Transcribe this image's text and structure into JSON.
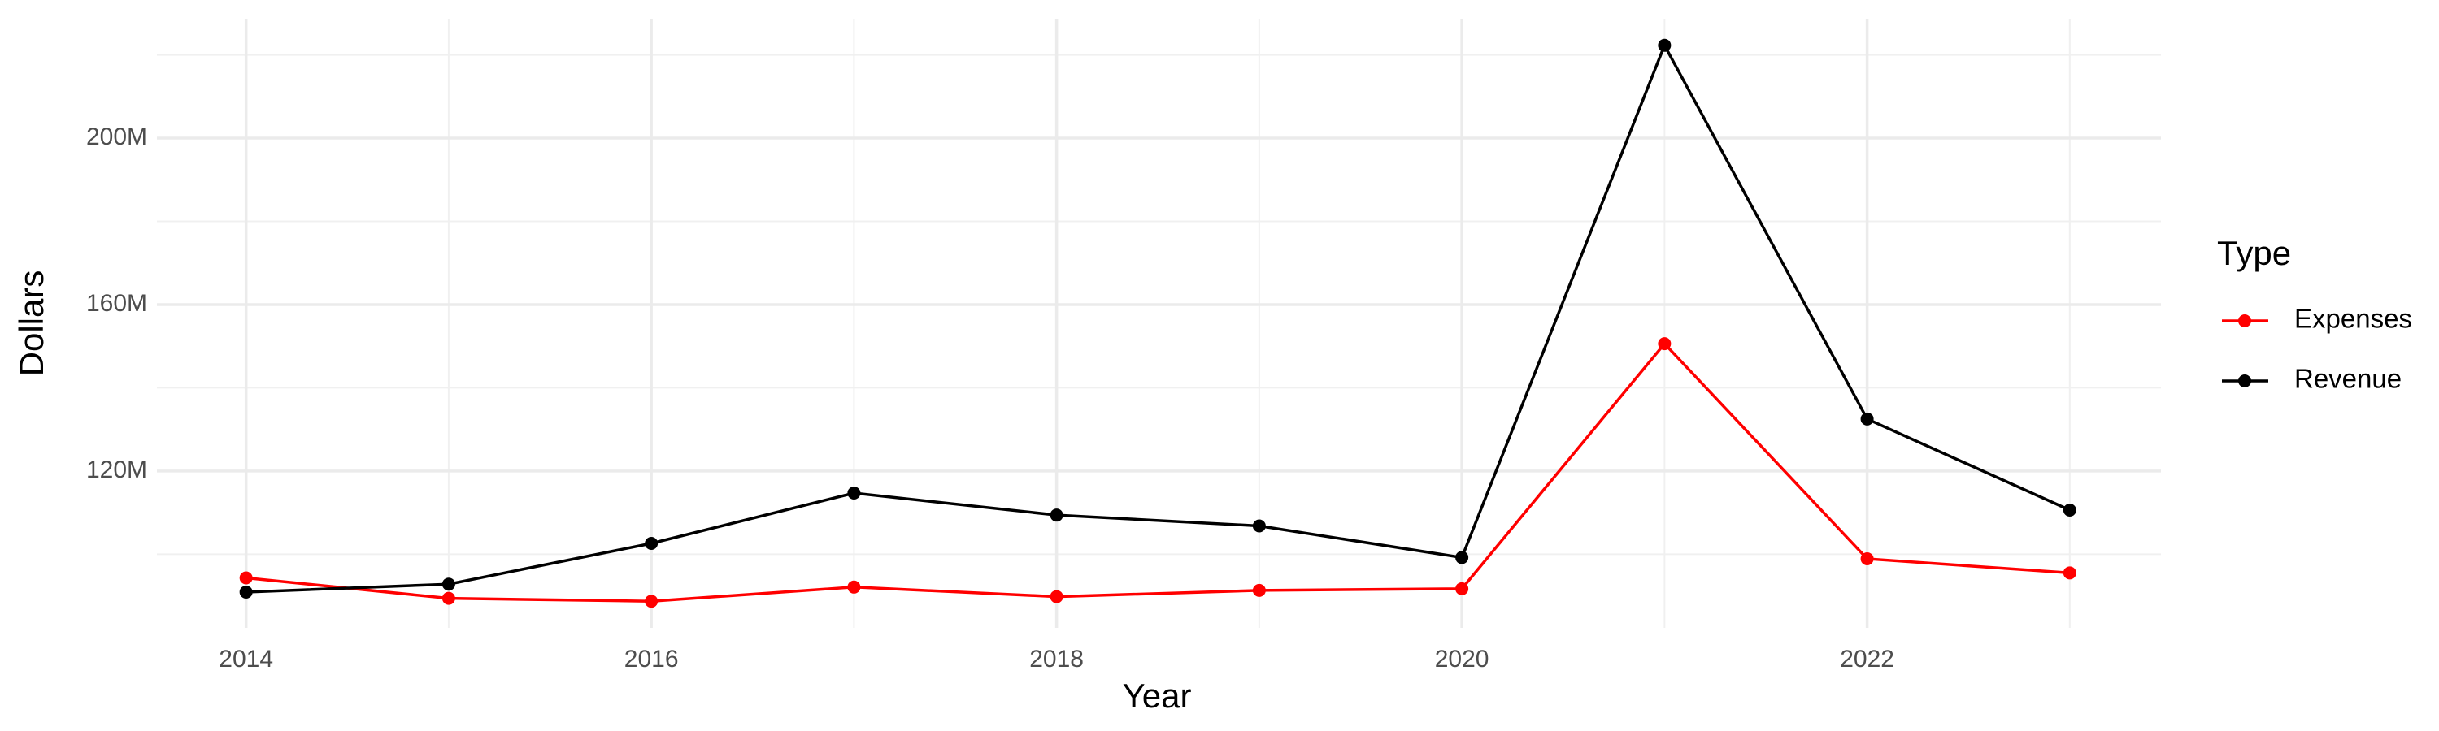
{
  "chart_data": {
    "type": "line",
    "x_label": "Year",
    "y_label": "Dollars",
    "x": [
      2014,
      2015,
      2016,
      2017,
      2018,
      2019,
      2020,
      2021,
      2022,
      2023
    ],
    "series": [
      {
        "name": "Expenses",
        "color": "#ff0000",
        "values": [
          94300000,
          89400000,
          88700000,
          92100000,
          89800000,
          91300000,
          91700000,
          150600000,
          98900000,
          95500000
        ]
      },
      {
        "name": "Revenue",
        "color": "#000000",
        "values": [
          90900000,
          92800000,
          102600000,
          114700000,
          109400000,
          106800000,
          99200000,
          222300000,
          132500000,
          110600000
        ]
      }
    ],
    "xlim": [
      2013.56,
      2023.45
    ],
    "xticks": [
      2014,
      2016,
      2018,
      2020,
      2022
    ],
    "ylim": [
      82300000,
      228700000
    ],
    "yticks": [
      {
        "value": 120000000,
        "label": "120M"
      },
      {
        "value": 160000000,
        "label": "160M"
      },
      {
        "value": 200000000,
        "label": "200M"
      }
    ],
    "grid": true,
    "minor_grid": true,
    "legend_title": "Type",
    "legend_position": "right"
  }
}
